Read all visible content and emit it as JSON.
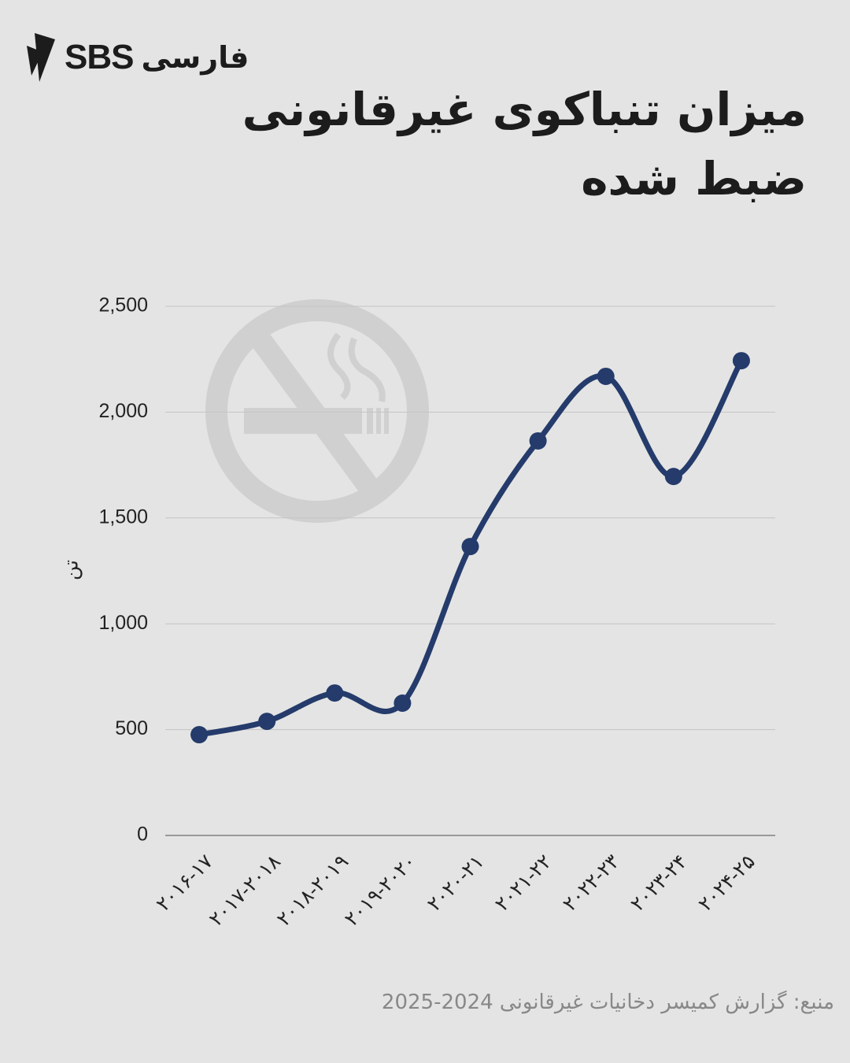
{
  "brand": {
    "name": "SBS",
    "language": "فارسی"
  },
  "chart_data": {
    "type": "line",
    "title": "میزان تنباکوی غیرقانونی ضبط شده",
    "y_label": "تن",
    "source": "منبع: گزارش کمیسر دخانیات غیرقانونی 2024-2025",
    "categories": [
      "۲۰۱۶-۱۷",
      "۲۰۱۷-۲۰۱۸",
      "۲۰۱۸-۲۰۱۹",
      "۲۰۱۹-۲۰۲۰",
      "۲۰۲۰-۲۱",
      "۲۰۲۱-۲۲",
      "۲۰۲۲-۲۳",
      "۲۰۲۳-۲۴",
      "۲۰۲۴-۲۵"
    ],
    "series": [
      {
        "color": "#243b6b",
        "values": [
          476,
          539,
          673,
          625,
          1365,
          1864,
          2169,
          1696,
          2243
        ]
      }
    ],
    "ylim": [
      0,
      2500
    ],
    "yticks": [
      0,
      500,
      {
        "value": 1000,
        "label": "1,000"
      },
      {
        "value": 1500,
        "label": "1,500"
      },
      {
        "value": 2000,
        "label": "2,000"
      },
      {
        "value": 2500,
        "label": "2,500"
      }
    ],
    "grid": true
  }
}
